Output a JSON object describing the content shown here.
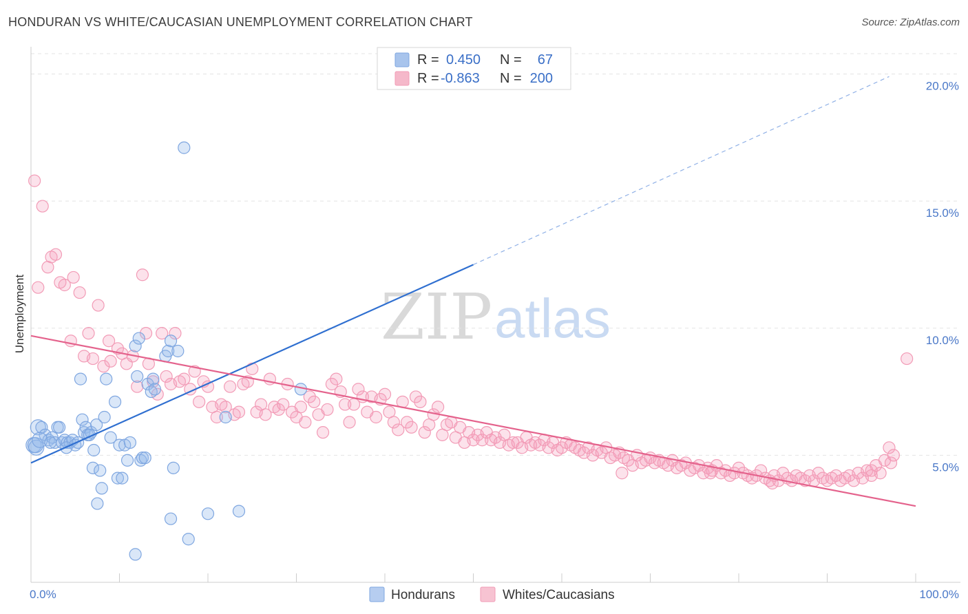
{
  "title": "HONDURAN VS WHITE/CAUCASIAN UNEMPLOYMENT CORRELATION CHART",
  "source": "Source: ZipAtlas.com",
  "watermark": {
    "part1": "ZIP",
    "part2": "atlas"
  },
  "legend": {
    "rows": [
      {
        "r_label": "R =",
        "r_value": "0.450",
        "n_label": "N =",
        "n_value": "67",
        "color": "#a8c4ec"
      },
      {
        "r_label": "R =",
        "r_value": "-0.863",
        "n_label": "N =",
        "n_value": "200",
        "color": "#f5b8ca"
      }
    ]
  },
  "bottom_legend": [
    {
      "label": "Hondurans",
      "color": "#b6cdf0"
    },
    {
      "label": "Whites/Caucasians",
      "color": "#f7c3d2"
    }
  ],
  "chart_data": {
    "type": "scatter",
    "title": "HONDURAN VS WHITE/CAUCASIAN UNEMPLOYMENT CORRELATION CHART",
    "xlabel": "",
    "ylabel": "Unemployment",
    "xlim": [
      0,
      100
    ],
    "ylim": [
      0,
      20.8
    ],
    "x_tick_labels": [
      "0.0%",
      "100.0%"
    ],
    "y_ticks": [
      5,
      10,
      15,
      20
    ],
    "y_tick_labels": [
      "5.0%",
      "10.0%",
      "15.0%",
      "20.0%"
    ],
    "grid": true,
    "series": [
      {
        "name": "Hondurans",
        "color": "#7ea6e0",
        "trend": {
          "x0": 0,
          "y0": 4.7,
          "x1": 50,
          "y1": 12.5,
          "dashed_to_x": 97,
          "dashed_to_y": 19.9,
          "color": "#2f6fd0"
        },
        "points": [
          [
            0.3,
            5.4
          ],
          [
            0.6,
            5.3
          ],
          [
            0.8,
            6.1
          ],
          [
            1.2,
            6.1
          ],
          [
            1.6,
            5.8
          ],
          [
            2.0,
            5.6
          ],
          [
            2.4,
            5.7
          ],
          [
            2.7,
            5.5
          ],
          [
            3.0,
            6.1
          ],
          [
            3.2,
            6.1
          ],
          [
            3.5,
            5.5
          ],
          [
            3.8,
            5.6
          ],
          [
            4.1,
            5.5
          ],
          [
            4.4,
            5.5
          ],
          [
            4.7,
            5.6
          ],
          [
            5.0,
            5.4
          ],
          [
            5.3,
            5.5
          ],
          [
            5.6,
            8.0
          ],
          [
            5.8,
            6.4
          ],
          [
            6.0,
            5.9
          ],
          [
            6.2,
            6.1
          ],
          [
            6.4,
            5.8
          ],
          [
            6.8,
            5.9
          ],
          [
            7.1,
            5.2
          ],
          [
            7.4,
            6.2
          ],
          [
            7.0,
            4.5
          ],
          [
            7.5,
            3.1
          ],
          [
            7.8,
            4.4
          ],
          [
            8.0,
            3.7
          ],
          [
            8.3,
            6.5
          ],
          [
            8.5,
            8.0
          ],
          [
            9.0,
            5.7
          ],
          [
            9.5,
            7.1
          ],
          [
            9.8,
            4.1
          ],
          [
            10.0,
            5.4
          ],
          [
            10.3,
            4.1
          ],
          [
            10.6,
            5.4
          ],
          [
            10.9,
            4.8
          ],
          [
            11.2,
            5.5
          ],
          [
            11.8,
            9.3
          ],
          [
            12.0,
            8.1
          ],
          [
            12.2,
            9.6
          ],
          [
            12.4,
            4.8
          ],
          [
            12.6,
            4.9
          ],
          [
            12.9,
            4.9
          ],
          [
            13.2,
            7.8
          ],
          [
            13.6,
            7.5
          ],
          [
            13.8,
            8.0
          ],
          [
            14.0,
            7.6
          ],
          [
            15.2,
            8.9
          ],
          [
            15.5,
            9.1
          ],
          [
            15.8,
            9.5
          ],
          [
            16.1,
            4.5
          ],
          [
            16.6,
            9.1
          ],
          [
            17.3,
            17.1
          ],
          [
            11.8,
            1.1
          ],
          [
            15.8,
            2.5
          ],
          [
            17.8,
            1.7
          ],
          [
            20.0,
            2.7
          ],
          [
            22.0,
            6.5
          ],
          [
            23.5,
            2.8
          ],
          [
            30.5,
            7.6
          ],
          [
            0.5,
            5.4
          ],
          [
            1.0,
            5.6
          ],
          [
            2.2,
            5.5
          ],
          [
            4.0,
            5.3
          ],
          [
            6.6,
            5.8
          ]
        ]
      },
      {
        "name": "Whites/Caucasians",
        "color": "#f29bb6",
        "trend": {
          "x0": 0,
          "y0": 9.7,
          "x1": 100,
          "y1": 3.0,
          "color": "#e4628c"
        },
        "points": [
          [
            0.4,
            15.8
          ],
          [
            1.3,
            14.8
          ],
          [
            0.8,
            11.6
          ],
          [
            1.9,
            12.4
          ],
          [
            2.3,
            12.8
          ],
          [
            2.8,
            12.9
          ],
          [
            3.3,
            11.8
          ],
          [
            3.8,
            11.7
          ],
          [
            4.5,
            9.5
          ],
          [
            4.8,
            12.0
          ],
          [
            5.5,
            11.4
          ],
          [
            6.0,
            8.9
          ],
          [
            6.5,
            9.8
          ],
          [
            7.0,
            8.8
          ],
          [
            7.6,
            10.9
          ],
          [
            8.2,
            8.5
          ],
          [
            8.8,
            9.5
          ],
          [
            9.0,
            8.7
          ],
          [
            9.8,
            9.2
          ],
          [
            10.3,
            9.0
          ],
          [
            10.8,
            8.6
          ],
          [
            11.5,
            8.9
          ],
          [
            12.0,
            7.7
          ],
          [
            12.6,
            12.1
          ],
          [
            13.0,
            9.8
          ],
          [
            13.3,
            8.6
          ],
          [
            13.8,
            7.9
          ],
          [
            14.3,
            7.4
          ],
          [
            14.8,
            9.8
          ],
          [
            15.3,
            8.1
          ],
          [
            15.8,
            7.8
          ],
          [
            16.3,
            9.8
          ],
          [
            16.8,
            7.9
          ],
          [
            17.3,
            8.0
          ],
          [
            18.0,
            7.6
          ],
          [
            18.5,
            8.3
          ],
          [
            19.0,
            7.1
          ],
          [
            19.5,
            7.9
          ],
          [
            20.0,
            7.7
          ],
          [
            20.5,
            6.9
          ],
          [
            21.0,
            6.5
          ],
          [
            21.5,
            7.0
          ],
          [
            22.0,
            6.9
          ],
          [
            22.5,
            7.7
          ],
          [
            23.0,
            6.6
          ],
          [
            23.5,
            6.7
          ],
          [
            24.0,
            7.8
          ],
          [
            24.5,
            7.9
          ],
          [
            25.0,
            8.4
          ],
          [
            25.5,
            6.7
          ],
          [
            26.0,
            7.0
          ],
          [
            26.5,
            6.6
          ],
          [
            27.0,
            8.0
          ],
          [
            27.5,
            6.9
          ],
          [
            28.0,
            6.8
          ],
          [
            28.5,
            7.0
          ],
          [
            29.0,
            7.8
          ],
          [
            29.5,
            6.7
          ],
          [
            30.0,
            6.5
          ],
          [
            30.5,
            6.9
          ],
          [
            31.0,
            6.3
          ],
          [
            31.5,
            7.3
          ],
          [
            32.0,
            7.1
          ],
          [
            32.5,
            6.6
          ],
          [
            33.0,
            5.9
          ],
          [
            33.5,
            6.8
          ],
          [
            34.0,
            7.8
          ],
          [
            34.5,
            8.0
          ],
          [
            35.0,
            7.5
          ],
          [
            35.5,
            7.0
          ],
          [
            36.0,
            6.3
          ],
          [
            36.5,
            7.0
          ],
          [
            37.0,
            7.6
          ],
          [
            37.5,
            7.3
          ],
          [
            38.0,
            6.7
          ],
          [
            38.5,
            7.3
          ],
          [
            39.0,
            6.5
          ],
          [
            39.5,
            7.2
          ],
          [
            40.0,
            7.4
          ],
          [
            40.5,
            6.7
          ],
          [
            41.0,
            6.3
          ],
          [
            41.5,
            6.0
          ],
          [
            42.0,
            7.1
          ],
          [
            42.5,
            6.3
          ],
          [
            43.0,
            6.1
          ],
          [
            43.5,
            7.3
          ],
          [
            44.0,
            7.1
          ],
          [
            44.5,
            5.9
          ],
          [
            45.0,
            6.2
          ],
          [
            45.5,
            6.6
          ],
          [
            46.0,
            6.9
          ],
          [
            46.5,
            5.8
          ],
          [
            47.0,
            6.2
          ],
          [
            47.5,
            6.3
          ],
          [
            48.0,
            5.7
          ],
          [
            48.5,
            6.1
          ],
          [
            49.0,
            5.5
          ],
          [
            49.5,
            5.9
          ],
          [
            50.0,
            5.6
          ],
          [
            50.5,
            5.8
          ],
          [
            51.0,
            5.6
          ],
          [
            51.5,
            5.9
          ],
          [
            52.0,
            5.6
          ],
          [
            52.5,
            5.7
          ],
          [
            53.0,
            5.5
          ],
          [
            53.5,
            5.8
          ],
          [
            54.0,
            5.4
          ],
          [
            54.5,
            5.5
          ],
          [
            55.0,
            5.5
          ],
          [
            55.5,
            5.3
          ],
          [
            56.0,
            5.7
          ],
          [
            56.5,
            5.4
          ],
          [
            57.0,
            5.5
          ],
          [
            57.5,
            5.4
          ],
          [
            58.0,
            5.6
          ],
          [
            58.5,
            5.3
          ],
          [
            59.0,
            5.5
          ],
          [
            59.5,
            5.2
          ],
          [
            60.0,
            5.3
          ],
          [
            60.5,
            5.5
          ],
          [
            61.0,
            5.4
          ],
          [
            61.5,
            5.3
          ],
          [
            62.0,
            5.2
          ],
          [
            62.5,
            5.1
          ],
          [
            63.0,
            5.3
          ],
          [
            63.5,
            5.0
          ],
          [
            64.0,
            5.2
          ],
          [
            64.5,
            5.1
          ],
          [
            65.0,
            5.3
          ],
          [
            65.5,
            4.9
          ],
          [
            66.0,
            5.0
          ],
          [
            66.5,
            5.1
          ],
          [
            67.0,
            4.9
          ],
          [
            67.5,
            4.8
          ],
          [
            68.0,
            4.6
          ],
          [
            68.5,
            5.0
          ],
          [
            69.0,
            4.7
          ],
          [
            69.5,
            4.8
          ],
          [
            70.0,
            4.9
          ],
          [
            70.5,
            4.7
          ],
          [
            71.0,
            4.8
          ],
          [
            71.5,
            4.7
          ],
          [
            72.0,
            4.6
          ],
          [
            72.5,
            4.8
          ],
          [
            73.0,
            4.5
          ],
          [
            73.5,
            4.6
          ],
          [
            74.0,
            4.7
          ],
          [
            74.5,
            4.4
          ],
          [
            75.0,
            4.5
          ],
          [
            75.5,
            4.6
          ],
          [
            76.0,
            4.3
          ],
          [
            76.5,
            4.5
          ],
          [
            77.0,
            4.4
          ],
          [
            77.5,
            4.6
          ],
          [
            78.0,
            4.3
          ],
          [
            78.5,
            4.4
          ],
          [
            79.0,
            4.2
          ],
          [
            79.5,
            4.3
          ],
          [
            80.0,
            4.5
          ],
          [
            80.5,
            4.3
          ],
          [
            81.0,
            4.2
          ],
          [
            81.5,
            4.1
          ],
          [
            82.0,
            4.2
          ],
          [
            82.5,
            4.4
          ],
          [
            83.0,
            4.1
          ],
          [
            83.5,
            4.0
          ],
          [
            84.0,
            4.2
          ],
          [
            84.5,
            4.0
          ],
          [
            85.0,
            4.3
          ],
          [
            85.5,
            4.1
          ],
          [
            86.0,
            4.0
          ],
          [
            86.5,
            4.2
          ],
          [
            87.0,
            4.1
          ],
          [
            87.5,
            4.0
          ],
          [
            88.0,
            4.2
          ],
          [
            88.5,
            4.0
          ],
          [
            89.0,
            4.3
          ],
          [
            89.5,
            4.1
          ],
          [
            90.0,
            4.0
          ],
          [
            90.5,
            4.1
          ],
          [
            91.0,
            4.2
          ],
          [
            91.5,
            4.0
          ],
          [
            92.0,
            4.1
          ],
          [
            92.5,
            4.2
          ],
          [
            93.0,
            4.0
          ],
          [
            93.5,
            4.3
          ],
          [
            94.0,
            4.1
          ],
          [
            94.5,
            4.4
          ],
          [
            95.0,
            4.2
          ],
          [
            95.5,
            4.6
          ],
          [
            96.0,
            4.3
          ],
          [
            96.5,
            4.8
          ],
          [
            97.0,
            5.3
          ],
          [
            66.8,
            4.3
          ],
          [
            76.8,
            4.3
          ],
          [
            83.8,
            3.9
          ],
          [
            97.2,
            4.7
          ],
          [
            99.0,
            8.8
          ],
          [
            97.5,
            5.0
          ],
          [
            95.0,
            4.4
          ]
        ]
      }
    ]
  }
}
